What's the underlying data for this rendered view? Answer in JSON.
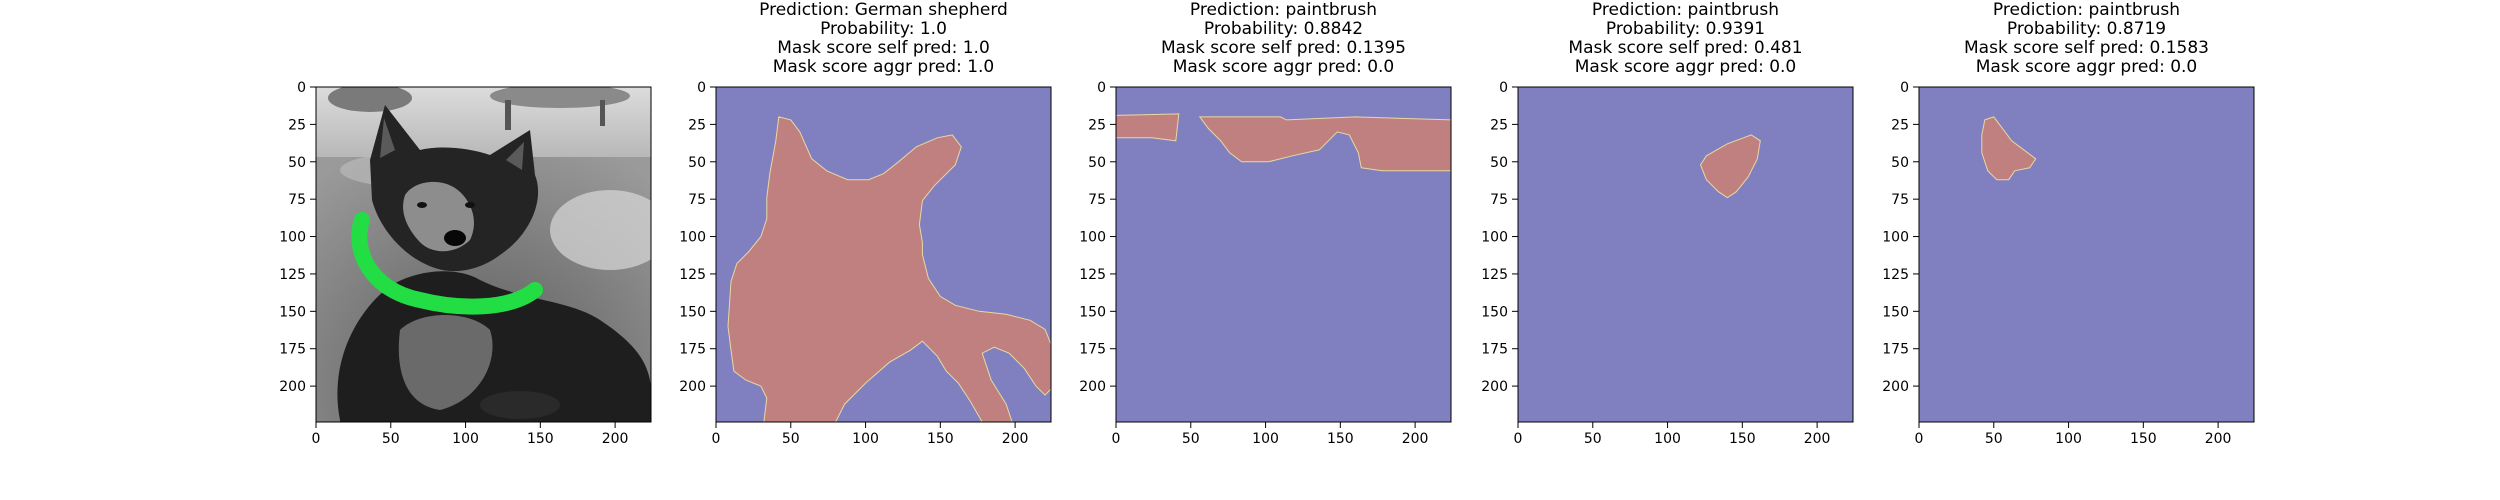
{
  "colors": {
    "mask_background": "#8080c0",
    "mask_region": "#c08080",
    "collar": "#22dd44"
  },
  "chart_data": [
    {
      "type": "image",
      "panel": "input-image",
      "title_lines": [],
      "x_ticks": [
        0,
        50,
        100,
        150,
        200
      ],
      "y_ticks": [
        0,
        25,
        50,
        75,
        100,
        125,
        150,
        175,
        200
      ],
      "xlim": [
        0,
        224
      ],
      "ylim": [
        224,
        0
      ],
      "grid": false
    },
    {
      "type": "heatmap",
      "panel": "mask-1",
      "title_lines": [
        "Prediction: German shepherd",
        "Probability: 1.0",
        "Mask score self pred: 1.0",
        "Mask score aggr pred: 1.0"
      ],
      "x_ticks": [
        0,
        50,
        100,
        150,
        200
      ],
      "y_ticks": [
        0,
        25,
        50,
        75,
        100,
        125,
        150,
        175,
        200
      ],
      "xlim": [
        0,
        224
      ],
      "ylim": [
        224,
        0
      ],
      "grid": false,
      "mask_polygon": [
        [
          42,
          20
        ],
        [
          50,
          22
        ],
        [
          56,
          30
        ],
        [
          64,
          48
        ],
        [
          74,
          56
        ],
        [
          88,
          62
        ],
        [
          102,
          62
        ],
        [
          112,
          58
        ],
        [
          122,
          50
        ],
        [
          134,
          40
        ],
        [
          148,
          34
        ],
        [
          158,
          32
        ],
        [
          164,
          40
        ],
        [
          160,
          52
        ],
        [
          146,
          66
        ],
        [
          138,
          76
        ],
        [
          136,
          92
        ],
        [
          138,
          104
        ],
        [
          138,
          112
        ],
        [
          142,
          128
        ],
        [
          150,
          140
        ],
        [
          160,
          146
        ],
        [
          176,
          150
        ],
        [
          194,
          152
        ],
        [
          210,
          156
        ],
        [
          220,
          162
        ],
        [
          224,
          172
        ],
        [
          224,
          202
        ],
        [
          220,
          206
        ],
        [
          214,
          200
        ],
        [
          206,
          188
        ],
        [
          196,
          178
        ],
        [
          186,
          174
        ],
        [
          178,
          178
        ],
        [
          184,
          196
        ],
        [
          194,
          212
        ],
        [
          198,
          224
        ],
        [
          178,
          224
        ],
        [
          170,
          210
        ],
        [
          162,
          198
        ],
        [
          154,
          190
        ],
        [
          148,
          180
        ],
        [
          138,
          170
        ],
        [
          130,
          176
        ],
        [
          116,
          184
        ],
        [
          100,
          198
        ],
        [
          86,
          212
        ],
        [
          80,
          224
        ],
        [
          32,
          224
        ],
        [
          34,
          208
        ],
        [
          30,
          200
        ],
        [
          20,
          196
        ],
        [
          12,
          190
        ],
        [
          10,
          176
        ],
        [
          8,
          160
        ],
        [
          10,
          130
        ],
        [
          14,
          118
        ],
        [
          22,
          110
        ],
        [
          30,
          100
        ],
        [
          34,
          88
        ],
        [
          34,
          74
        ],
        [
          36,
          58
        ],
        [
          40,
          36
        ]
      ]
    },
    {
      "type": "heatmap",
      "panel": "mask-2",
      "title_lines": [
        "Prediction: paintbrush",
        "Probability: 0.8842",
        "Mask score self pred: 0.1395",
        "Mask score aggr pred: 0.0"
      ],
      "x_ticks": [
        0,
        50,
        100,
        150,
        200
      ],
      "y_ticks": [
        0,
        25,
        50,
        75,
        100,
        125,
        150,
        175,
        200
      ],
      "xlim": [
        0,
        224
      ],
      "ylim": [
        224,
        0
      ],
      "grid": false,
      "mask_polygons": [
        [
          [
            0,
            19
          ],
          [
            42,
            18
          ],
          [
            40,
            36
          ],
          [
            24,
            34
          ],
          [
            0,
            34
          ]
        ],
        [
          [
            56,
            20
          ],
          [
            110,
            20
          ],
          [
            114,
            22
          ],
          [
            160,
            20
          ],
          [
            224,
            22
          ],
          [
            224,
            56
          ],
          [
            178,
            56
          ],
          [
            164,
            54
          ],
          [
            162,
            44
          ],
          [
            156,
            32
          ],
          [
            148,
            30
          ],
          [
            136,
            42
          ],
          [
            118,
            46
          ],
          [
            102,
            50
          ],
          [
            84,
            50
          ],
          [
            76,
            44
          ],
          [
            70,
            36
          ],
          [
            62,
            28
          ]
        ]
      ]
    },
    {
      "type": "heatmap",
      "panel": "mask-3",
      "title_lines": [
        "Prediction: paintbrush",
        "Probability: 0.9391",
        "Mask score self pred: 0.481",
        "Mask score aggr pred: 0.0"
      ],
      "x_ticks": [
        0,
        50,
        100,
        150,
        200
      ],
      "y_ticks": [
        0,
        25,
        50,
        75,
        100,
        125,
        150,
        175,
        200
      ],
      "xlim": [
        0,
        224
      ],
      "ylim": [
        224,
        0
      ],
      "grid": false,
      "mask_polygon": [
        [
          126,
          46
        ],
        [
          140,
          38
        ],
        [
          156,
          32
        ],
        [
          162,
          36
        ],
        [
          160,
          48
        ],
        [
          154,
          60
        ],
        [
          146,
          70
        ],
        [
          140,
          74
        ],
        [
          134,
          70
        ],
        [
          126,
          62
        ],
        [
          122,
          52
        ]
      ]
    },
    {
      "type": "heatmap",
      "panel": "mask-4",
      "title_lines": [
        "Prediction: paintbrush",
        "Probability: 0.8719",
        "Mask score self pred: 0.1583",
        "Mask score aggr pred: 0.0"
      ],
      "x_ticks": [
        0,
        50,
        100,
        150,
        200
      ],
      "y_ticks": [
        0,
        25,
        50,
        75,
        100,
        125,
        150,
        175,
        200
      ],
      "xlim": [
        0,
        224
      ],
      "ylim": [
        224,
        0
      ],
      "grid": false,
      "mask_polygon": [
        [
          44,
          22
        ],
        [
          50,
          20
        ],
        [
          56,
          28
        ],
        [
          62,
          36
        ],
        [
          70,
          42
        ],
        [
          78,
          48
        ],
        [
          74,
          54
        ],
        [
          64,
          56
        ],
        [
          60,
          62
        ],
        [
          52,
          62
        ],
        [
          46,
          56
        ],
        [
          42,
          44
        ],
        [
          42,
          32
        ]
      ]
    }
  ]
}
